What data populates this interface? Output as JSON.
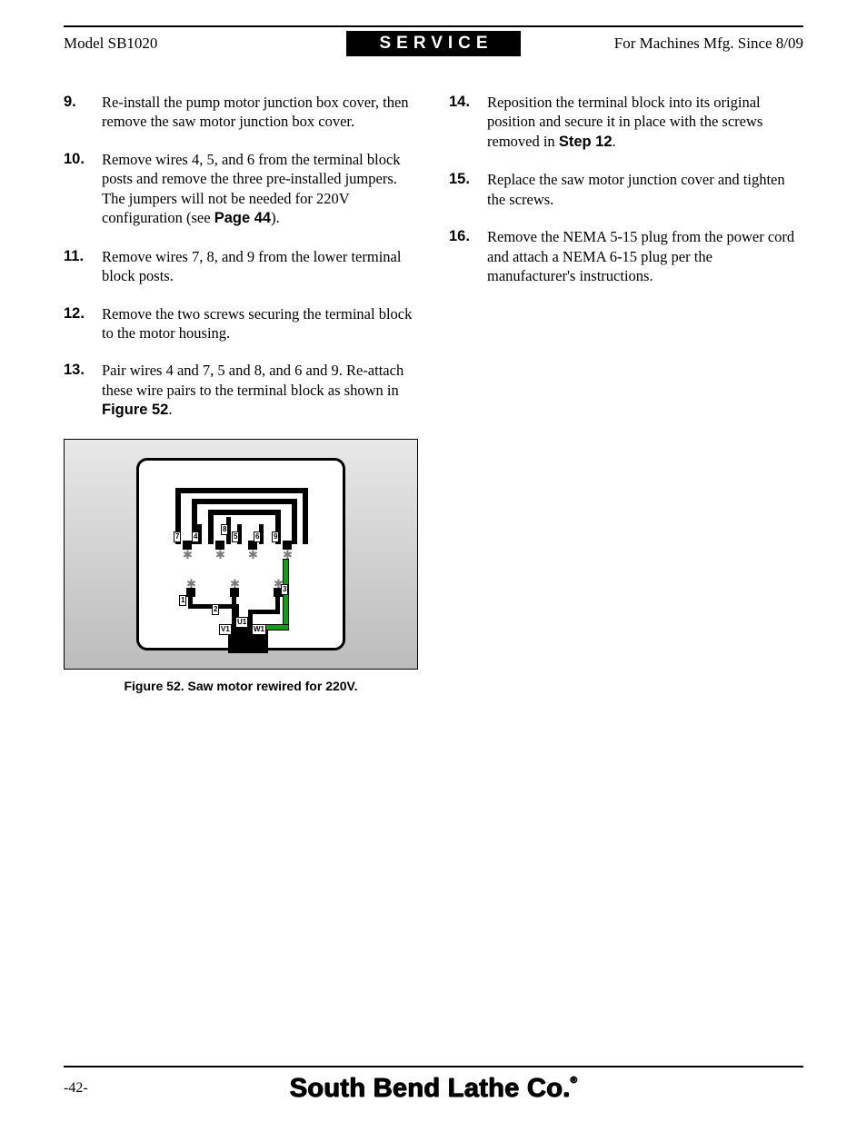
{
  "header": {
    "left": "Model SB1020",
    "center": "SERVICE",
    "right": "For Machines Mfg. Since 8/09"
  },
  "left_steps": [
    {
      "num": "9.",
      "text_parts": [
        "Re-install the pump motor junction box cover, then remove the saw motor junction box cover."
      ]
    },
    {
      "num": "10.",
      "text_parts": [
        "Remove wires 4, 5, and 6 from the terminal block posts and remove the three pre-installed jumpers. The jumpers will not be needed for 220V configuration (see ",
        {
          "bold": "Page 44"
        },
        ")."
      ]
    },
    {
      "num": "11.",
      "text_parts": [
        "Remove wires 7, 8, and 9 from the lower terminal block posts."
      ]
    },
    {
      "num": "12.",
      "text_parts": [
        "Remove the two screws securing the terminal block to the motor housing."
      ]
    },
    {
      "num": "13.",
      "text_parts": [
        "Pair wires 4 and 7, 5 and 8, and 6 and 9. Re-attach these wire pairs to the terminal block as shown in ",
        {
          "bold": "Figure 52"
        },
        "."
      ]
    }
  ],
  "right_steps": [
    {
      "num": "14.",
      "text_parts": [
        "Reposition the terminal block into its original position and secure it in place with the screws removed in ",
        {
          "bold": "Step 12"
        },
        "."
      ]
    },
    {
      "num": "15.",
      "text_parts": [
        "Replace the saw motor junction cover and tighten the screws."
      ]
    },
    {
      "num": "16.",
      "text_parts": [
        "Remove the NEMA 5-15 plug from the power cord and attach a NEMA 6-15 plug per the manufacturer's instructions."
      ]
    }
  ],
  "figure": {
    "caption": "Figure 52. Saw motor rewired for 220V.",
    "wire_tags_top": [
      "7",
      "4",
      "8",
      "5",
      "6",
      "9"
    ],
    "wire_tags_bot": [
      "1",
      "2",
      "3"
    ],
    "cable_tags": [
      "V1",
      "U1",
      "W1"
    ],
    "colors": {
      "panel_bg_top": "#e8e8e8",
      "panel_bg_bot": "#bcbcbc",
      "inner_bg": "#ffffff",
      "black": "#000000",
      "green": "#1a9a1a",
      "star": "#7a7a7a"
    }
  },
  "footer": {
    "page": "-42-",
    "brand": "South Bend Lathe Co.",
    "regmark": "®"
  }
}
